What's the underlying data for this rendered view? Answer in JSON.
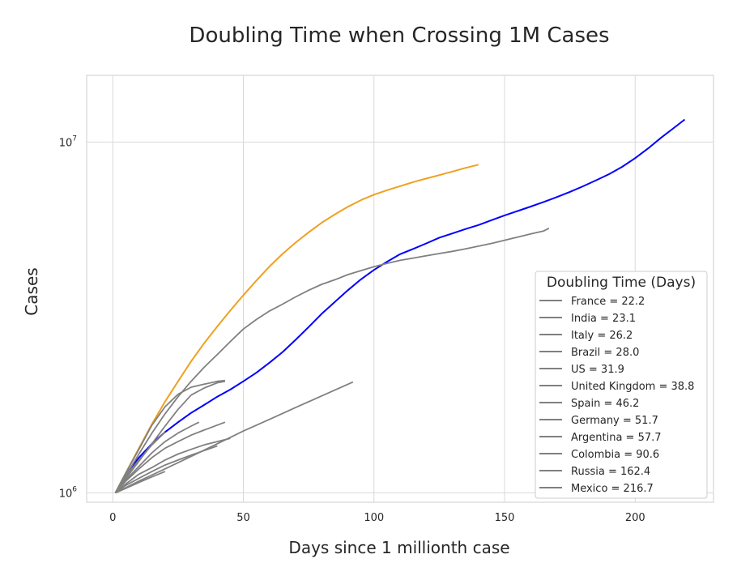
{
  "chart_data": {
    "type": "line",
    "title": "Doubling Time when Crossing 1M Cases",
    "xlabel": "Days since 1 millionth case",
    "ylabel": "Cases",
    "xlim": [
      -10,
      230
    ],
    "ylim": [
      940000,
      15500000
    ],
    "yscale": "log",
    "grid": true,
    "x_ticks": [
      0,
      50,
      100,
      150,
      200
    ],
    "y_ticks": [
      {
        "value": 1000000,
        "base": "10",
        "exp": "6"
      },
      {
        "value": 10000000,
        "base": "10",
        "exp": "7"
      }
    ],
    "legend": {
      "title": "Doubling Time (Days)",
      "placement": "lower right",
      "entries": [
        "France = 22.2",
        "India = 23.1",
        "Italy = 26.2",
        "Brazil = 28.0",
        "US = 31.9",
        "United Kingdom = 38.8",
        "Spain = 46.2",
        "Germany = 51.7",
        "Argentina = 57.7",
        "Colombia = 90.6",
        "Russia = 162.4",
        "Mexico = 216.7"
      ]
    },
    "series": [
      {
        "name": "US",
        "color": "#0000ff",
        "x": [
          1,
          5,
          10,
          15,
          20,
          25,
          30,
          35,
          40,
          45,
          50,
          55,
          60,
          65,
          70,
          75,
          80,
          85,
          90,
          95,
          100,
          105,
          110,
          115,
          120,
          125,
          130,
          135,
          140,
          145,
          150,
          155,
          160,
          165,
          170,
          175,
          180,
          185,
          190,
          195,
          200,
          205,
          210,
          215,
          219
        ],
        "y": [
          1000000,
          1130000,
          1260000,
          1380000,
          1490000,
          1590000,
          1690000,
          1780000,
          1880000,
          1970000,
          2080000,
          2200000,
          2350000,
          2520000,
          2730000,
          2970000,
          3240000,
          3500000,
          3780000,
          4060000,
          4320000,
          4560000,
          4790000,
          4960000,
          5140000,
          5340000,
          5490000,
          5650000,
          5800000,
          5990000,
          6180000,
          6360000,
          6550000,
          6750000,
          6970000,
          7210000,
          7480000,
          7780000,
          8100000,
          8500000,
          9000000,
          9600000,
          10300000,
          11000000,
          11600000
        ]
      },
      {
        "name": "India",
        "color": "#f0a020",
        "x": [
          1,
          5,
          10,
          15,
          20,
          25,
          30,
          35,
          40,
          45,
          50,
          55,
          60,
          65,
          70,
          75,
          80,
          85,
          90,
          95,
          100,
          105,
          110,
          115,
          120,
          125,
          130,
          135,
          140
        ],
        "y": [
          1000000,
          1140000,
          1340000,
          1570000,
          1820000,
          2080000,
          2370000,
          2670000,
          2980000,
          3310000,
          3660000,
          4030000,
          4420000,
          4800000,
          5170000,
          5530000,
          5890000,
          6220000,
          6540000,
          6830000,
          7080000,
          7290000,
          7490000,
          7690000,
          7870000,
          8050000,
          8240000,
          8440000,
          8620000
        ]
      },
      {
        "name": "Brazil",
        "color": "#808080",
        "x": [
          1,
          5,
          10,
          15,
          20,
          25,
          30,
          35,
          40,
          45,
          50,
          55,
          60,
          65,
          70,
          75,
          80,
          85,
          90,
          95,
          100,
          105,
          110,
          115,
          120,
          125,
          130,
          135,
          140,
          145,
          150,
          155,
          160,
          165,
          167
        ],
        "y": [
          1000000,
          1120000,
          1290000,
          1480000,
          1680000,
          1880000,
          2080000,
          2280000,
          2480000,
          2700000,
          2930000,
          3120000,
          3300000,
          3450000,
          3620000,
          3780000,
          3930000,
          4050000,
          4190000,
          4300000,
          4410000,
          4510000,
          4600000,
          4670000,
          4740000,
          4810000,
          4880000,
          4960000,
          5050000,
          5140000,
          5250000,
          5360000,
          5470000,
          5580000,
          5680000
        ]
      },
      {
        "name": "Russia",
        "color": "#808080",
        "x": [
          1,
          10,
          20,
          30,
          40,
          50,
          60,
          70,
          80,
          92
        ],
        "y": [
          1000000,
          1080000,
          1170000,
          1270000,
          1380000,
          1500000,
          1620000,
          1750000,
          1890000,
          2070000
        ]
      },
      {
        "name": "France",
        "color": "#808080",
        "x": [
          1,
          5,
          10,
          15,
          20,
          25,
          30,
          35,
          40,
          43
        ],
        "y": [
          1000000,
          1140000,
          1330000,
          1560000,
          1760000,
          1910000,
          2000000,
          2040000,
          2080000,
          2090000
        ]
      },
      {
        "name": "Spain",
        "color": "#808080",
        "x": [
          1,
          5,
          10,
          15,
          20,
          25,
          30,
          35,
          40,
          43
        ],
        "y": [
          1000000,
          1100000,
          1230000,
          1380000,
          1550000,
          1730000,
          1900000,
          1990000,
          2060000,
          2080000
        ]
      },
      {
        "name": "Argentina",
        "color": "#808080",
        "x": [
          1,
          5,
          10,
          15,
          20,
          25,
          30,
          35,
          40,
          43
        ],
        "y": [
          1000000,
          1080000,
          1170000,
          1260000,
          1340000,
          1400000,
          1460000,
          1510000,
          1560000,
          1590000
        ]
      },
      {
        "name": "Colombia",
        "color": "#808080",
        "x": [
          1,
          5,
          10,
          15,
          20,
          25,
          30,
          33
        ],
        "y": [
          1000000,
          1090000,
          1190000,
          1300000,
          1400000,
          1480000,
          1550000,
          1590000
        ]
      },
      {
        "name": "United Kingdom",
        "color": "#808080",
        "x": [
          1,
          5,
          10,
          15,
          20
        ],
        "y": [
          1000000,
          1110000,
          1240000,
          1370000,
          1490000
        ]
      },
      {
        "name": "Mexico",
        "color": "#808080",
        "x": [
          1,
          5,
          10,
          15,
          20,
          25,
          30,
          35,
          40,
          45
        ],
        "y": [
          1000000,
          1060000,
          1130000,
          1180000,
          1240000,
          1290000,
          1330000,
          1370000,
          1400000,
          1430000
        ]
      },
      {
        "name": "Germany",
        "color": "#808080",
        "x": [
          1,
          5,
          10,
          15,
          20,
          25,
          30,
          35,
          40
        ],
        "y": [
          1000000,
          1050000,
          1100000,
          1150000,
          1200000,
          1240000,
          1280000,
          1320000,
          1360000
        ]
      },
      {
        "name": "Italy",
        "color": "#808080",
        "x": [
          1,
          5,
          10,
          15,
          20
        ],
        "y": [
          1000000,
          1030000,
          1070000,
          1110000,
          1150000
        ]
      }
    ]
  }
}
